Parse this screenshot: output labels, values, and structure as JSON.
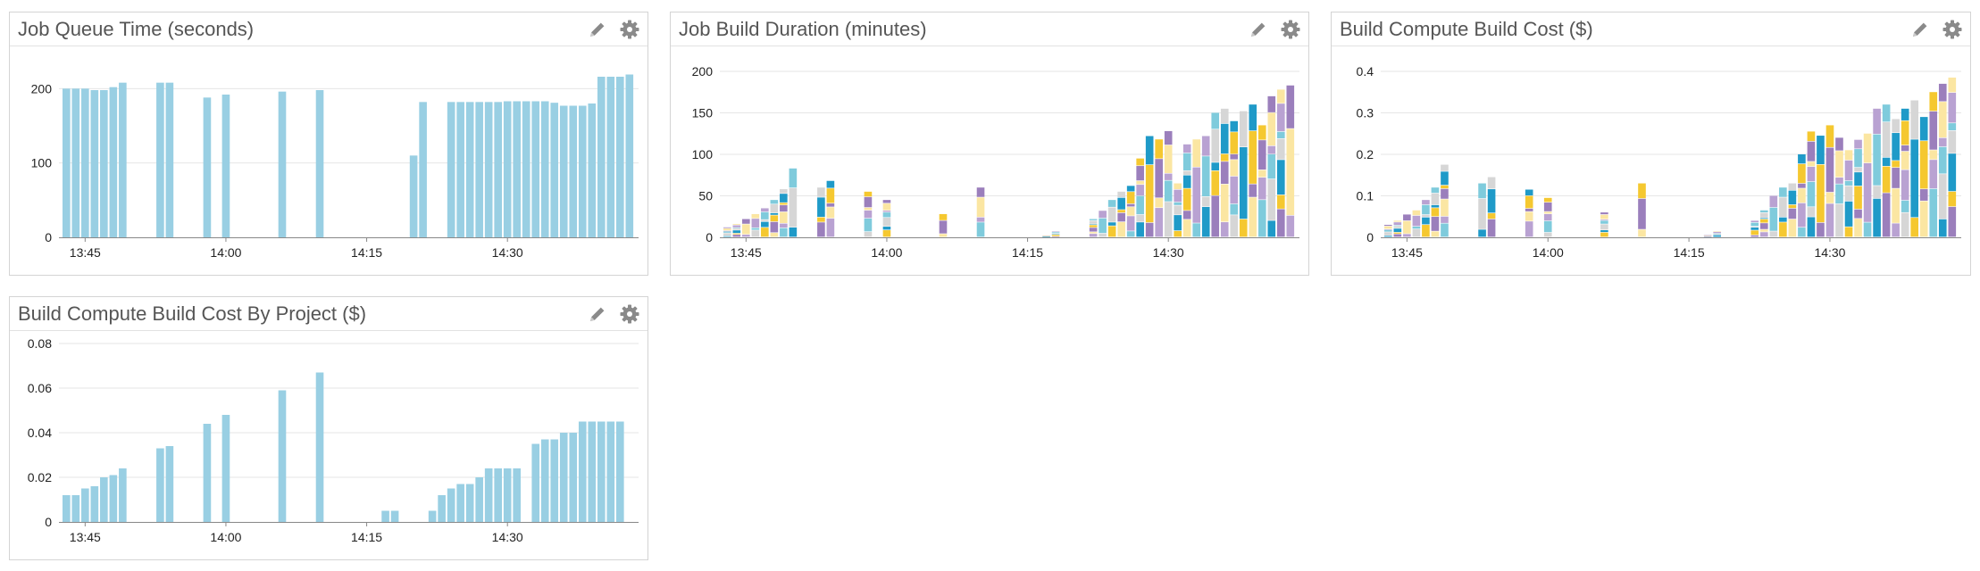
{
  "colors": {
    "bar": "#99cfe3",
    "axis": "#888888",
    "grid": "#e6e6e6",
    "icon": "#8a8a8a",
    "stack_palette": [
      "#f5c830",
      "#fbe6a2",
      "#7fcbdc",
      "#1f9ac8",
      "#9b7fbc",
      "#b9a2d2",
      "#d6d6d6"
    ]
  },
  "icons": {
    "edit": "pencil-icon",
    "settings": "gear-icon"
  },
  "panels": [
    {
      "title": "Job Queue Time (seconds)",
      "chart_data": {
        "type": "bar",
        "x_ticks": [
          "13:45",
          "14:00",
          "14:15",
          "14:30"
        ],
        "x_range": [
          "13:43",
          "14:43"
        ],
        "y_ticks": [
          "0",
          "100",
          "200"
        ],
        "ylim": [
          0,
          240
        ],
        "grid": true,
        "series": [
          {
            "values": [
              {
                "x": "13:43",
                "y": 200
              },
              {
                "x": "13:44",
                "y": 200
              },
              {
                "x": "13:45",
                "y": 200
              },
              {
                "x": "13:46",
                "y": 198
              },
              {
                "x": "13:47",
                "y": 198
              },
              {
                "x": "13:48",
                "y": 202
              },
              {
                "x": "13:49",
                "y": 208
              },
              {
                "x": "13:53",
                "y": 208
              },
              {
                "x": "13:54",
                "y": 208
              },
              {
                "x": "13:58",
                "y": 188
              },
              {
                "x": "14:00",
                "y": 192
              },
              {
                "x": "14:06",
                "y": 196
              },
              {
                "x": "14:10",
                "y": 198
              },
              {
                "x": "14:20",
                "y": 110
              },
              {
                "x": "14:21",
                "y": 182
              },
              {
                "x": "14:24",
                "y": 182
              },
              {
                "x": "14:25",
                "y": 182
              },
              {
                "x": "14:26",
                "y": 182
              },
              {
                "x": "14:27",
                "y": 182
              },
              {
                "x": "14:28",
                "y": 182
              },
              {
                "x": "14:29",
                "y": 182
              },
              {
                "x": "14:30",
                "y": 183
              },
              {
                "x": "14:31",
                "y": 183
              },
              {
                "x": "14:32",
                "y": 183
              },
              {
                "x": "14:33",
                "y": 183
              },
              {
                "x": "14:34",
                "y": 183
              },
              {
                "x": "14:35",
                "y": 181
              },
              {
                "x": "14:36",
                "y": 177
              },
              {
                "x": "14:37",
                "y": 177
              },
              {
                "x": "14:38",
                "y": 177
              },
              {
                "x": "14:39",
                "y": 180
              },
              {
                "x": "14:40",
                "y": 216
              },
              {
                "x": "14:41",
                "y": 216
              },
              {
                "x": "14:42",
                "y": 216
              },
              {
                "x": "14:43",
                "y": 219
              }
            ]
          }
        ]
      }
    },
    {
      "title": "Job Build Duration (minutes)",
      "chart_data": {
        "type": "bar",
        "stacked": true,
        "x_ticks": [
          "13:45",
          "14:00",
          "14:15",
          "14:30"
        ],
        "x_range": [
          "13:43",
          "14:43"
        ],
        "y_ticks": [
          "0",
          "50",
          "100",
          "150",
          "200"
        ],
        "ylim": [
          0,
          215
        ],
        "grid": true,
        "stacks": [
          {
            "x": "13:43",
            "total": 12
          },
          {
            "x": "13:44",
            "total": 16
          },
          {
            "x": "13:45",
            "total": 22
          },
          {
            "x": "13:46",
            "total": 28
          },
          {
            "x": "13:47",
            "total": 35
          },
          {
            "x": "13:48",
            "total": 45
          },
          {
            "x": "13:49",
            "total": 58
          },
          {
            "x": "13:50",
            "total": 83
          },
          {
            "x": "13:53",
            "total": 60
          },
          {
            "x": "13:54",
            "total": 68
          },
          {
            "x": "13:58",
            "total": 55
          },
          {
            "x": "14:00",
            "total": 45
          },
          {
            "x": "14:06",
            "total": 28
          },
          {
            "x": "14:10",
            "total": 60
          },
          {
            "x": "14:17",
            "total": 2
          },
          {
            "x": "14:18",
            "total": 7
          },
          {
            "x": "14:22",
            "total": 22
          },
          {
            "x": "14:23",
            "total": 32
          },
          {
            "x": "14:24",
            "total": 45
          },
          {
            "x": "14:25",
            "total": 55
          },
          {
            "x": "14:26",
            "total": 62
          },
          {
            "x": "14:27",
            "total": 95
          },
          {
            "x": "14:28",
            "total": 122
          },
          {
            "x": "14:29",
            "total": 118
          },
          {
            "x": "14:30",
            "total": 128
          },
          {
            "x": "14:31",
            "total": 65
          },
          {
            "x": "14:32",
            "total": 112
          },
          {
            "x": "14:33",
            "total": 118
          },
          {
            "x": "14:34",
            "total": 122
          },
          {
            "x": "14:35",
            "total": 150
          },
          {
            "x": "14:36",
            "total": 155
          },
          {
            "x": "14:37",
            "total": 140
          },
          {
            "x": "14:38",
            "total": 152
          },
          {
            "x": "14:39",
            "total": 160
          },
          {
            "x": "14:40",
            "total": 135
          },
          {
            "x": "14:41",
            "total": 170
          },
          {
            "x": "14:42",
            "total": 178
          },
          {
            "x": "14:43",
            "total": 183
          }
        ]
      }
    },
    {
      "title": "Build Compute Build Cost ($)",
      "chart_data": {
        "type": "bar",
        "stacked": true,
        "x_ticks": [
          "13:45",
          "14:00",
          "14:15",
          "14:30"
        ],
        "x_range": [
          "13:43",
          "14:43"
        ],
        "y_ticks": [
          "0",
          "0.1",
          "0.2",
          "0.3",
          "0.4"
        ],
        "ylim": [
          0,
          0.43
        ],
        "grid": true,
        "stacks": [
          {
            "x": "13:43",
            "total": 0.03
          },
          {
            "x": "13:44",
            "total": 0.04
          },
          {
            "x": "13:45",
            "total": 0.055
          },
          {
            "x": "13:46",
            "total": 0.065
          },
          {
            "x": "13:47",
            "total": 0.09
          },
          {
            "x": "13:48",
            "total": 0.12
          },
          {
            "x": "13:49",
            "total": 0.175
          },
          {
            "x": "13:53",
            "total": 0.13
          },
          {
            "x": "13:54",
            "total": 0.145
          },
          {
            "x": "13:58",
            "total": 0.115
          },
          {
            "x": "14:00",
            "total": 0.095
          },
          {
            "x": "14:06",
            "total": 0.06
          },
          {
            "x": "14:10",
            "total": 0.13
          },
          {
            "x": "14:17",
            "total": 0.005
          },
          {
            "x": "14:18",
            "total": 0.015
          },
          {
            "x": "14:22",
            "total": 0.04
          },
          {
            "x": "14:23",
            "total": 0.065
          },
          {
            "x": "14:24",
            "total": 0.1
          },
          {
            "x": "14:25",
            "total": 0.12
          },
          {
            "x": "14:26",
            "total": 0.13
          },
          {
            "x": "14:27",
            "total": 0.2
          },
          {
            "x": "14:28",
            "total": 0.255
          },
          {
            "x": "14:29",
            "total": 0.245
          },
          {
            "x": "14:30",
            "total": 0.27
          },
          {
            "x": "14:31",
            "total": 0.24
          },
          {
            "x": "14:32",
            "total": 0.21
          },
          {
            "x": "14:33",
            "total": 0.235
          },
          {
            "x": "14:34",
            "total": 0.25
          },
          {
            "x": "14:35",
            "total": 0.31
          },
          {
            "x": "14:36",
            "total": 0.32
          },
          {
            "x": "14:37",
            "total": 0.285
          },
          {
            "x": "14:38",
            "total": 0.31
          },
          {
            "x": "14:39",
            "total": 0.33
          },
          {
            "x": "14:40",
            "total": 0.29
          },
          {
            "x": "14:41",
            "total": 0.35
          },
          {
            "x": "14:42",
            "total": 0.37
          },
          {
            "x": "14:43",
            "total": 0.385
          }
        ]
      }
    },
    {
      "title": "Build Compute Build Cost By Project ($)",
      "chart_data": {
        "type": "bar",
        "x_ticks": [
          "13:45",
          "14:00",
          "14:15",
          "14:30"
        ],
        "x_range": [
          "13:43",
          "14:43"
        ],
        "y_ticks": [
          "0",
          "0.02",
          "0.04",
          "0.06",
          "0.08"
        ],
        "ylim": [
          0,
          0.08
        ],
        "grid": true,
        "series": [
          {
            "values": [
              {
                "x": "13:43",
                "y": 0.012
              },
              {
                "x": "13:44",
                "y": 0.012
              },
              {
                "x": "13:45",
                "y": 0.015
              },
              {
                "x": "13:46",
                "y": 0.016
              },
              {
                "x": "13:47",
                "y": 0.02
              },
              {
                "x": "13:48",
                "y": 0.021
              },
              {
                "x": "13:49",
                "y": 0.024
              },
              {
                "x": "13:53",
                "y": 0.033
              },
              {
                "x": "13:54",
                "y": 0.034
              },
              {
                "x": "13:58",
                "y": 0.044
              },
              {
                "x": "14:00",
                "y": 0.048
              },
              {
                "x": "14:06",
                "y": 0.059
              },
              {
                "x": "14:10",
                "y": 0.067
              },
              {
                "x": "14:17",
                "y": 0.005
              },
              {
                "x": "14:18",
                "y": 0.005
              },
              {
                "x": "14:22",
                "y": 0.005
              },
              {
                "x": "14:23",
                "y": 0.012
              },
              {
                "x": "14:24",
                "y": 0.015
              },
              {
                "x": "14:25",
                "y": 0.017
              },
              {
                "x": "14:26",
                "y": 0.017
              },
              {
                "x": "14:27",
                "y": 0.02
              },
              {
                "x": "14:28",
                "y": 0.024
              },
              {
                "x": "14:29",
                "y": 0.024
              },
              {
                "x": "14:30",
                "y": 0.024
              },
              {
                "x": "14:31",
                "y": 0.024
              },
              {
                "x": "14:33",
                "y": 0.035
              },
              {
                "x": "14:34",
                "y": 0.037
              },
              {
                "x": "14:35",
                "y": 0.037
              },
              {
                "x": "14:36",
                "y": 0.04
              },
              {
                "x": "14:37",
                "y": 0.04
              },
              {
                "x": "14:38",
                "y": 0.045
              },
              {
                "x": "14:39",
                "y": 0.045
              },
              {
                "x": "14:40",
                "y": 0.045
              },
              {
                "x": "14:41",
                "y": 0.045
              },
              {
                "x": "14:42",
                "y": 0.045
              }
            ]
          }
        ]
      }
    }
  ]
}
